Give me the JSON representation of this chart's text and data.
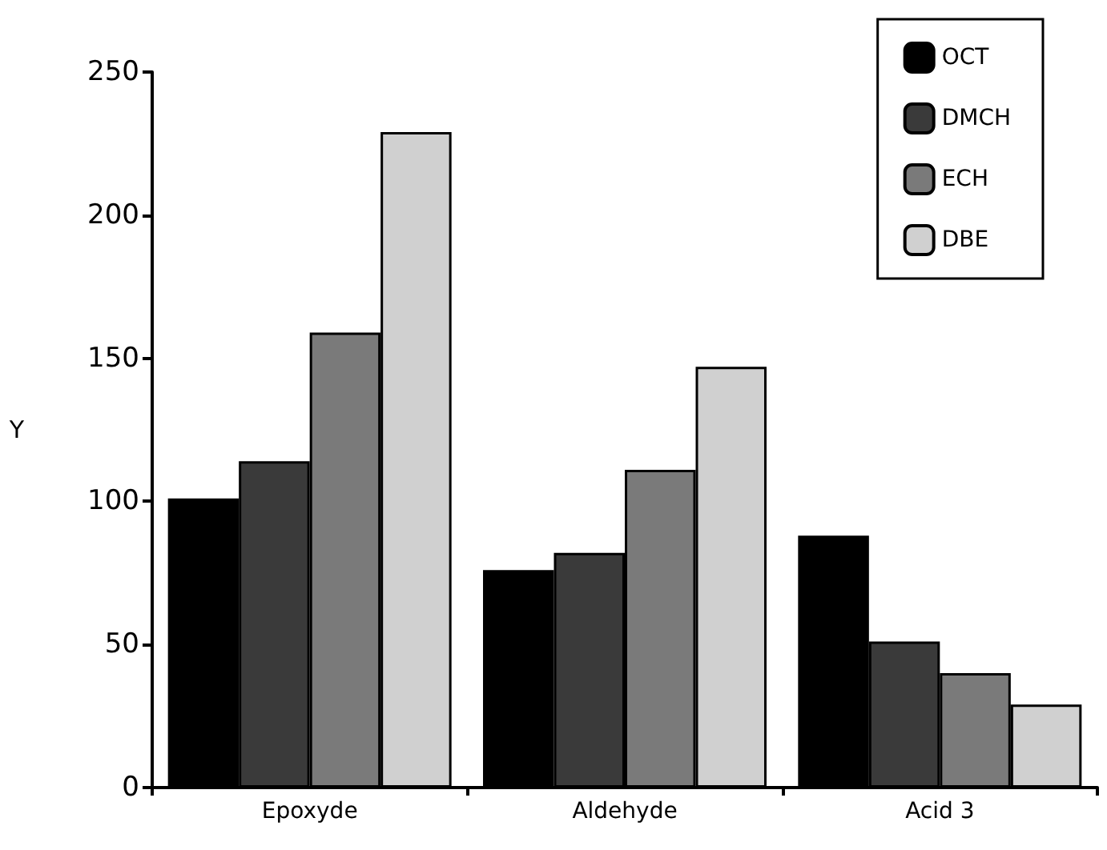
{
  "chart_data": {
    "type": "bar",
    "ylabel": "Y",
    "categories": [
      "Epoxyde",
      "Aldehyde",
      "Acid 3"
    ],
    "series": [
      {
        "name": "OCT",
        "color": "#000000",
        "values": [
          101,
          76,
          88
        ]
      },
      {
        "name": "DMCH",
        "color": "#3a3a3a",
        "values": [
          114,
          82,
          51
        ]
      },
      {
        "name": "ECH",
        "color": "#7a7a7a",
        "values": [
          159,
          111,
          40
        ]
      },
      {
        "name": "DBE",
        "color": "#d0d0d0",
        "values": [
          229,
          147,
          29
        ]
      }
    ],
    "ylim": [
      0,
      250
    ],
    "yticks": [
      0,
      50,
      100,
      150,
      200,
      250
    ],
    "grid": false,
    "legend": "top right"
  }
}
